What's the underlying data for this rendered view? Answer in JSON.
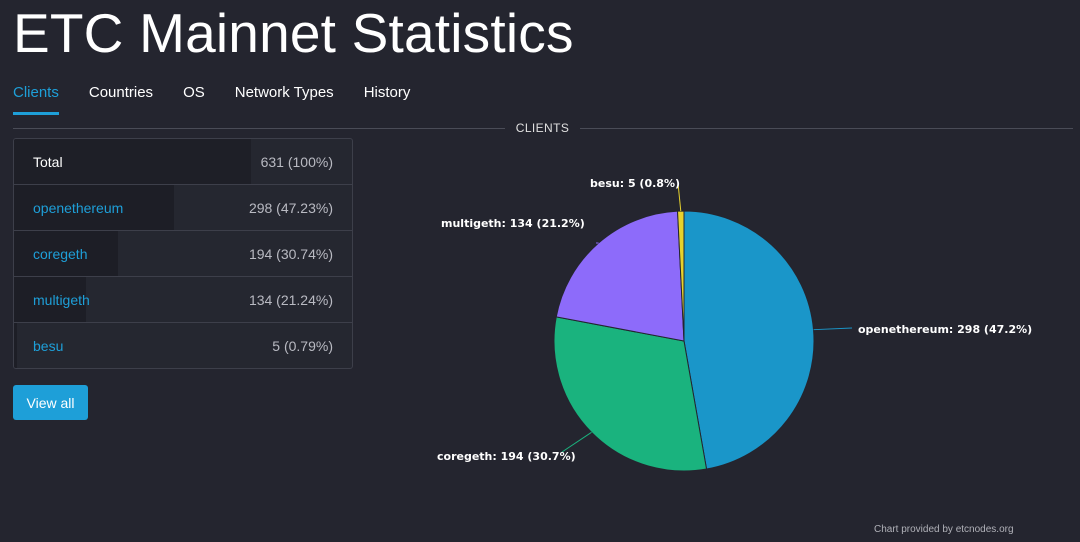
{
  "title": "ETC Mainnet Statistics",
  "tabs": [
    {
      "label": "Clients",
      "active": true
    },
    {
      "label": "Countries",
      "active": false
    },
    {
      "label": "OS",
      "active": false
    },
    {
      "label": "Network Types",
      "active": false
    },
    {
      "label": "History",
      "active": false
    }
  ],
  "section_label": "CLIENTS",
  "table": {
    "total": {
      "label": "Total",
      "value": "631 (100%)"
    },
    "rows": [
      {
        "label": "openethereum",
        "value": "298 (47.23%)",
        "share": 0.4723
      },
      {
        "label": "coregeth",
        "value": "194 (30.74%)",
        "share": 0.3074
      },
      {
        "label": "multigeth",
        "value": "134 (21.24%)",
        "share": 0.2124
      },
      {
        "label": "besu",
        "value": "5 (0.79%)",
        "share": 0.0079
      }
    ]
  },
  "view_all_label": "View all",
  "credit": "Chart provided by etcnodes.org",
  "colors": {
    "accent": "#1e9fd8",
    "background": "#24252f"
  },
  "chart_data": {
    "type": "pie",
    "title": "",
    "slices": [
      {
        "name": "openethereum",
        "value": 298,
        "label": "openethereum: 298 (47.2%)",
        "color": "#1a96c9"
      },
      {
        "name": "coregeth",
        "value": 194,
        "label": "coregeth: 194 (30.7%)",
        "color": "#1ab37e"
      },
      {
        "name": "multigeth",
        "value": 134,
        "label": "multigeth: 134 (21.2%)",
        "color": "#8d6bfa"
      },
      {
        "name": "besu",
        "value": 5,
        "label": "besu: 5 (0.8%)",
        "color": "#e6d22e"
      }
    ]
  }
}
